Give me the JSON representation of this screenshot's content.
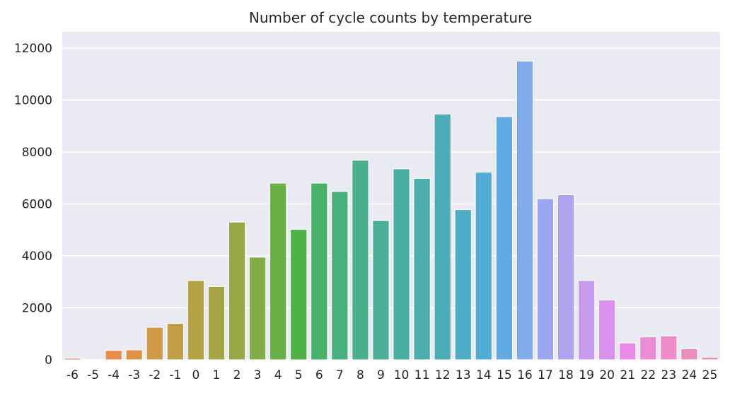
{
  "chart_data": {
    "type": "bar",
    "title": "Number of cycle counts by temperature",
    "xlabel": "",
    "ylabel": "",
    "categories": [
      "-6",
      "-5",
      "-4",
      "-3",
      "-2",
      "-1",
      "0",
      "1",
      "2",
      "3",
      "4",
      "5",
      "6",
      "7",
      "8",
      "9",
      "10",
      "11",
      "12",
      "13",
      "14",
      "15",
      "16",
      "17",
      "18",
      "19",
      "20",
      "21",
      "22",
      "23",
      "24",
      "25"
    ],
    "values": [
      60,
      0,
      360,
      380,
      1250,
      1400,
      3050,
      2820,
      5300,
      3950,
      6800,
      5020,
      6800,
      6480,
      7680,
      5360,
      7350,
      6980,
      9460,
      5780,
      7220,
      9360,
      11500,
      6200,
      6350,
      3050,
      2300,
      650,
      880,
      920,
      420,
      100
    ],
    "ylim": [
      0,
      12000
    ],
    "yticks": [
      "0",
      "2000",
      "4000",
      "6000",
      "8000",
      "10000",
      "12000"
    ],
    "grid": true,
    "colors": [
      "#e8827d",
      "#ec8766",
      "#e98d4e",
      "#dd9244",
      "#cf9945",
      "#c19e45",
      "#b4a245",
      "#a6a545",
      "#96a845",
      "#82ac45",
      "#6aaf46",
      "#4fb246",
      "#47b167",
      "#48b07d",
      "#49af8c",
      "#4aae98",
      "#4aaea2",
      "#4baead",
      "#4cadb8",
      "#4eacc4",
      "#52abd3",
      "#60a9e2",
      "#81aded",
      "#9aa7ee",
      "#b0a2ee",
      "#c59ced",
      "#d892ec",
      "#e98ae6",
      "#ed8cd6",
      "#ec8dc9",
      "#eb8ebd",
      "#ea91af"
    ]
  }
}
